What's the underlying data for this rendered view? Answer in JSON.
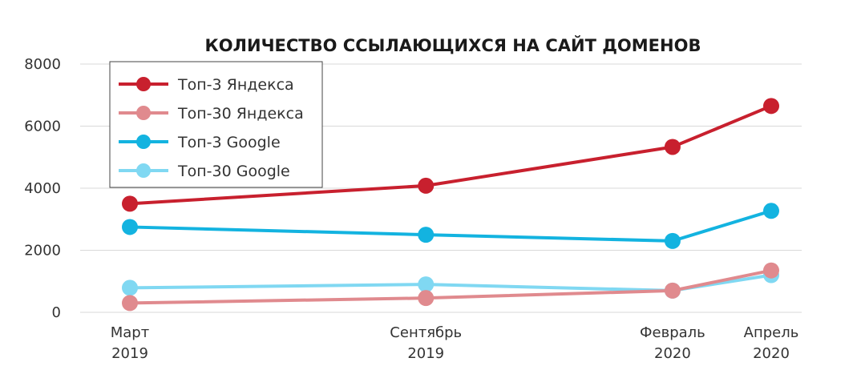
{
  "chart_data": {
    "type": "line",
    "title": "КОЛИЧЕСТВО ССЫЛАЮЩИХСЯ НА САЙТ ДОМЕНОВ",
    "x": [
      {
        "label_line1": "Март",
        "label_line2": "2019",
        "month_index": 0
      },
      {
        "label_line1": "Сентябрь",
        "label_line2": "2019",
        "month_index": 6
      },
      {
        "label_line1": "Февраль",
        "label_line2": "2020",
        "month_index": 11
      },
      {
        "label_line1": "Апрель",
        "label_line2": "2020",
        "month_index": 13
      }
    ],
    "ylim": [
      0,
      8000
    ],
    "yticks": [
      "0",
      "2000",
      "4000",
      "6000",
      "8000"
    ],
    "grid": "horizontal",
    "legend_position": "top-left",
    "series": [
      {
        "name": "Топ-3 Яндекса",
        "color": "#c8202e",
        "values": [
          3500,
          4080,
          5330,
          6650
        ]
      },
      {
        "name": "Топ-30 Яндекса",
        "color": "#e08a8e",
        "values": [
          300,
          460,
          700,
          1350
        ]
      },
      {
        "name": "Топ-3 Google",
        "color": "#13b3e0",
        "values": [
          2750,
          2500,
          2300,
          3270
        ]
      },
      {
        "name": "Топ-30 Google",
        "color": "#80d8f2",
        "values": [
          790,
          900,
          700,
          1200
        ]
      }
    ]
  }
}
